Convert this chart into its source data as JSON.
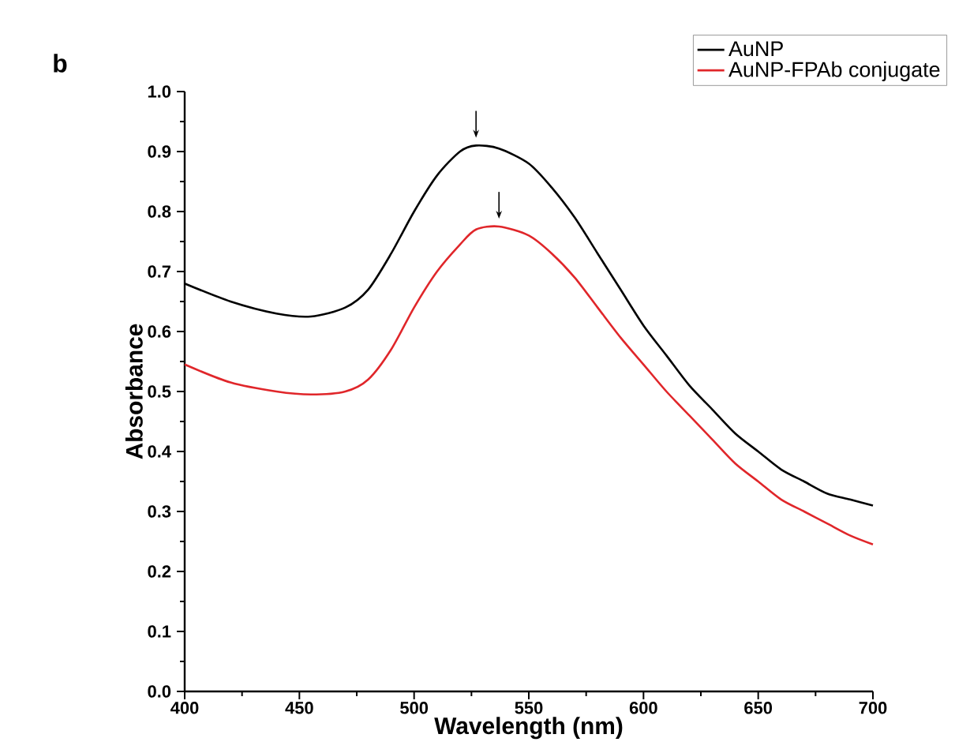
{
  "chart_data": {
    "type": "line",
    "xlabel": "Wavelength (nm)",
    "ylabel": "Absorbance",
    "annotations": [
      "b"
    ],
    "xlim": [
      400,
      700
    ],
    "xticks": [
      400,
      450,
      500,
      550,
      600,
      650,
      700
    ],
    "ylim": [
      0.0,
      1.0
    ],
    "yticks": [
      {
        "value": 0.0,
        "label": "0.0"
      },
      {
        "value": 0.1,
        "label": "0.1"
      },
      {
        "value": 0.2,
        "label": "0.2"
      },
      {
        "value": 0.3,
        "label": "0.3"
      },
      {
        "value": 0.4,
        "label": "0.4"
      },
      {
        "value": 0.5,
        "label": "0.5"
      },
      {
        "value": 0.6,
        "label": "0.6"
      },
      {
        "value": 0.7,
        "label": "0.7"
      },
      {
        "value": 0.8,
        "label": "0.8"
      },
      {
        "value": 0.9,
        "label": "0.9"
      },
      {
        "value": 1.0,
        "label": "1.0"
      }
    ],
    "x": [
      400,
      420,
      440,
      455,
      470,
      480,
      490,
      500,
      510,
      520,
      527,
      537,
      550,
      560,
      570,
      580,
      590,
      600,
      610,
      620,
      630,
      640,
      650,
      660,
      670,
      680,
      690,
      700
    ],
    "series": [
      {
        "name": "AuNP",
        "color": "#000000",
        "values": [
          0.68,
          0.65,
          0.63,
          0.625,
          0.64,
          0.67,
          0.73,
          0.8,
          0.86,
          0.9,
          0.91,
          0.905,
          0.88,
          0.84,
          0.79,
          0.73,
          0.67,
          0.61,
          0.56,
          0.51,
          0.47,
          0.43,
          0.4,
          0.37,
          0.35,
          0.33,
          0.32,
          0.31
        ]
      },
      {
        "name": "AuNP-FPAb conjugate",
        "color": "#e0262a",
        "values": [
          0.545,
          0.515,
          0.5,
          0.495,
          0.5,
          0.52,
          0.57,
          0.64,
          0.7,
          0.745,
          0.77,
          0.775,
          0.76,
          0.73,
          0.69,
          0.64,
          0.59,
          0.545,
          0.5,
          0.46,
          0.42,
          0.38,
          0.35,
          0.32,
          0.3,
          0.28,
          0.26,
          0.245
        ]
      }
    ],
    "legend": "top right",
    "grid": false,
    "marker": "none",
    "line_style": "solid"
  }
}
